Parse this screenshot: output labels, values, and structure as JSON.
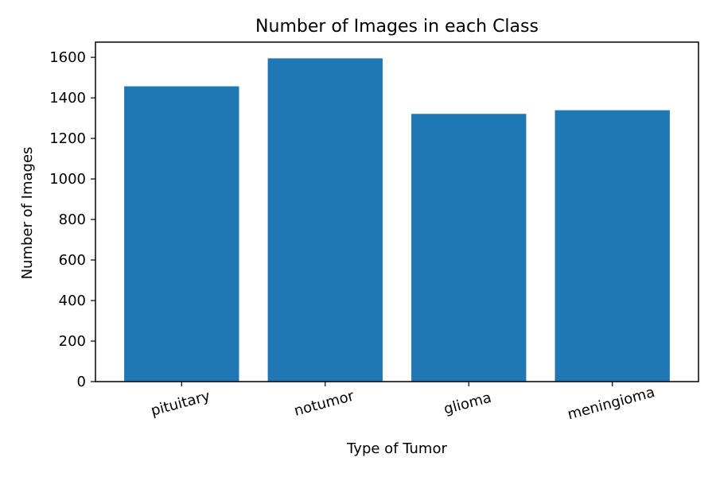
{
  "chart_data": {
    "type": "bar",
    "title": "Number of Images in each Class",
    "xlabel": "Type of Tumor",
    "ylabel": "Number of Images",
    "categories": [
      "pituitary",
      "notumor",
      "glioma",
      "meningioma"
    ],
    "values": [
      1457,
      1595,
      1321,
      1339
    ],
    "ylim": [
      0,
      1675
    ],
    "yticks": [
      0,
      200,
      400,
      600,
      800,
      1000,
      1200,
      1400,
      1600
    ],
    "grid": false,
    "legend": "none",
    "bar_color": "#1f77b4",
    "xtick_rotation_deg": -15
  }
}
